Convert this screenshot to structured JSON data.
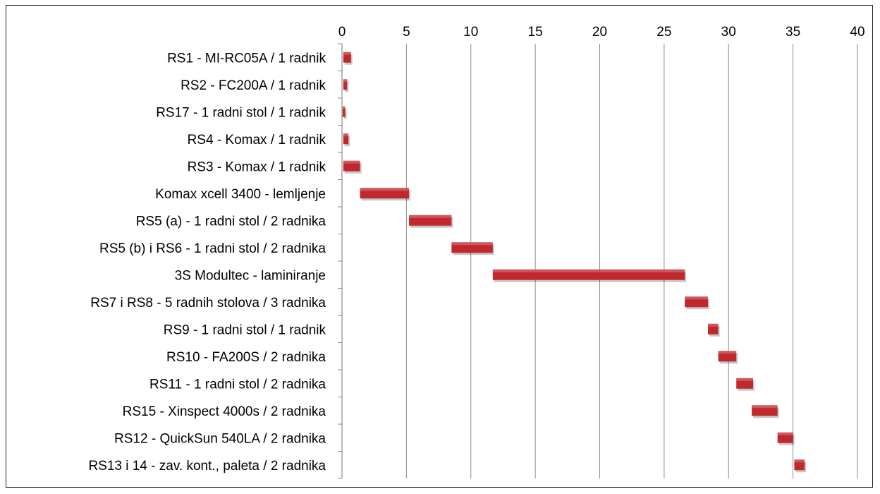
{
  "chart_data": {
    "type": "bar",
    "subtype": "gantt-floating-horizontal",
    "title": "",
    "xlabel": "",
    "ylabel": "",
    "xlim": [
      0,
      40
    ],
    "x_ticks": [
      0,
      5,
      10,
      15,
      20,
      25,
      30,
      35,
      40
    ],
    "x_axis_position": "top",
    "grid": true,
    "legend": "none",
    "bar_color": "#c0282d",
    "categories": [
      "RS1 - MI-RC05A / 1 radnik",
      "RS2 - FC200A / 1 radnik",
      "RS17 - 1 radni stol / 1 radnik",
      "RS4 - Komax / 1 radnik",
      "RS3 - Komax / 1 radnik",
      "Komax xcell 3400 - lemljenje",
      "RS5 (a) - 1 radni stol / 2 radnika",
      "RS5 (b) i RS6 - 1 radni stol / 2 radnika",
      "3S Modultec - laminiranje",
      "RS7 i RS8 - 5 radnih stolova / 3 radnika",
      "RS9 - 1 radni stol / 1 radnik",
      "RS10 - FA200S / 2 radnika",
      "RS11 - 1 radni stol / 2 radnika",
      "RS15 - Xinspect 4000s / 2 radnika",
      "RS12 - QuickSun 540LA / 2 radnika",
      "RS13 i 14 - zav. kont., paleta  / 2 radnika"
    ],
    "series": [
      {
        "start": [
          0.1,
          0.1,
          0.05,
          0.1,
          0.1,
          1.4,
          5.2,
          8.5,
          11.7,
          26.6,
          28.4,
          29.2,
          30.6,
          31.8,
          33.8,
          35.1
        ],
        "end": [
          0.7,
          0.4,
          0.25,
          0.5,
          1.4,
          5.2,
          8.5,
          11.7,
          26.6,
          28.4,
          29.2,
          30.6,
          31.9,
          33.8,
          35.0,
          35.9
        ]
      }
    ]
  }
}
